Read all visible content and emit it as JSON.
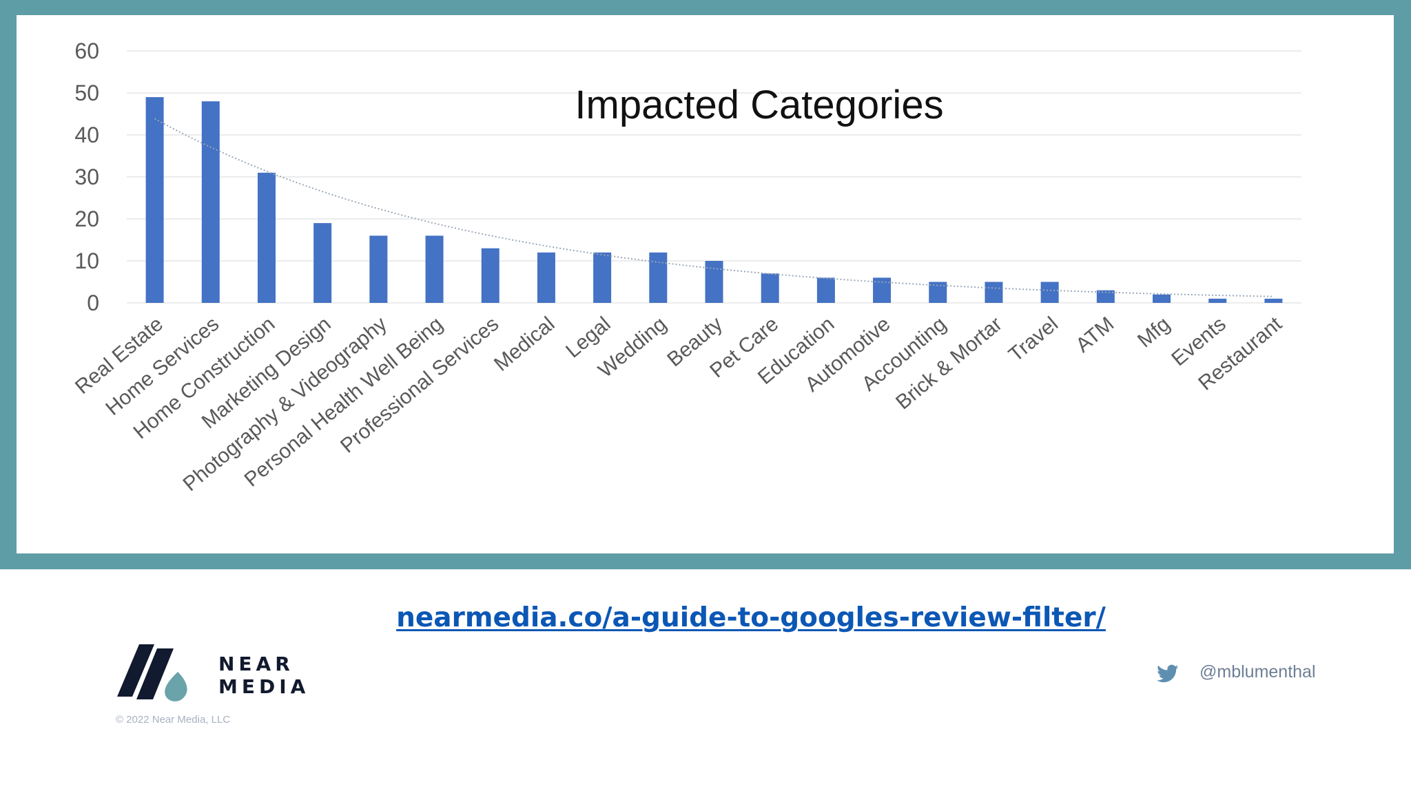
{
  "chart_data": {
    "type": "bar",
    "title": "Impacted Categories",
    "categories": [
      "Real Estate",
      "Home Services",
      "Home Construction",
      "Marketing Design",
      "Photography & Videography",
      "Personal Health Well Being",
      "Professional Services",
      "Medical",
      "Legal",
      "Wedding",
      "Beauty",
      "Pet Care",
      "Education",
      "Automotive",
      "Accounting",
      "Brick & Mortar",
      "Travel",
      "ATM",
      "Mfg",
      "Events",
      "Restaurant"
    ],
    "values": [
      49,
      48,
      31,
      19,
      16,
      16,
      13,
      12,
      12,
      12,
      10,
      7,
      6,
      6,
      5,
      5,
      5,
      3,
      2,
      1,
      1
    ],
    "yticks": [
      0,
      10,
      20,
      30,
      40,
      50,
      60
    ],
    "ylim": [
      0,
      60
    ],
    "trendline": "dotted exponential",
    "grid": true,
    "colors": {
      "bar": "#4472c4",
      "trend": "#9aa8b8",
      "grid": "#e6e6e6",
      "frame": "#5f9da6"
    }
  },
  "footer": {
    "link": "nearmedia.co/a-guide-to-googles-review-filter/",
    "logo_line1": "NEAR",
    "logo_line2": "MEDIA",
    "copyright": "© 2022 Near Media, LLC",
    "twitter_handle": "@mblumenthal",
    "twitter_icon": "twitter-bird-icon"
  }
}
